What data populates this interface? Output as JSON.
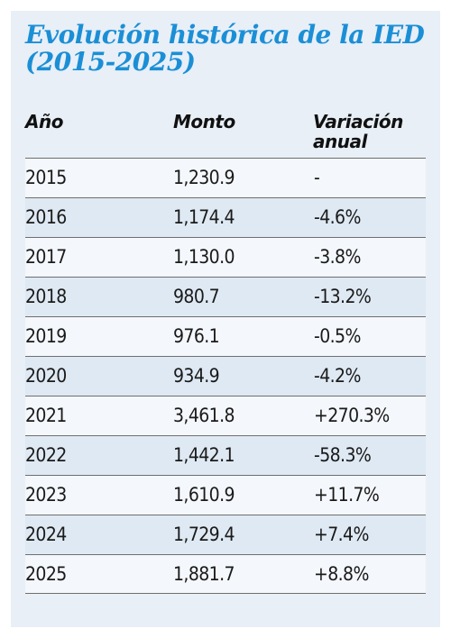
{
  "title": "Evolución histórica de la IED (2015-2025)",
  "headers": {
    "year": "Año",
    "amount": "Monto",
    "variation": "Variación anual"
  },
  "rows": [
    {
      "year": "2015",
      "amount": "1,230.9",
      "variation": "-"
    },
    {
      "year": "2016",
      "amount": "1,174.4",
      "variation": "-4.6%"
    },
    {
      "year": "2017",
      "amount": "1,130.0",
      "variation": "-3.8%"
    },
    {
      "year": "2018",
      "amount": "980.7",
      "variation": "-13.2%"
    },
    {
      "year": "2019",
      "amount": "976.1",
      "variation": "-0.5%"
    },
    {
      "year": "2020",
      "amount": "934.9",
      "variation": "-4.2%"
    },
    {
      "year": "2021",
      "amount": "3,461.8",
      "variation": "+270.3%"
    },
    {
      "year": "2022",
      "amount": "1,442.1",
      "variation": "-58.3%"
    },
    {
      "year": "2023",
      "amount": "1,610.9",
      "variation": "+11.7%"
    },
    {
      "year": "2024",
      "amount": "1,729.4",
      "variation": "+7.4%"
    },
    {
      "year": "2025",
      "amount": "1,881.7",
      "variation": "+8.8%"
    }
  ],
  "colors": {
    "title": "#1b8fd6",
    "background": "#e8eff7",
    "rule": "#6f6f6f"
  }
}
